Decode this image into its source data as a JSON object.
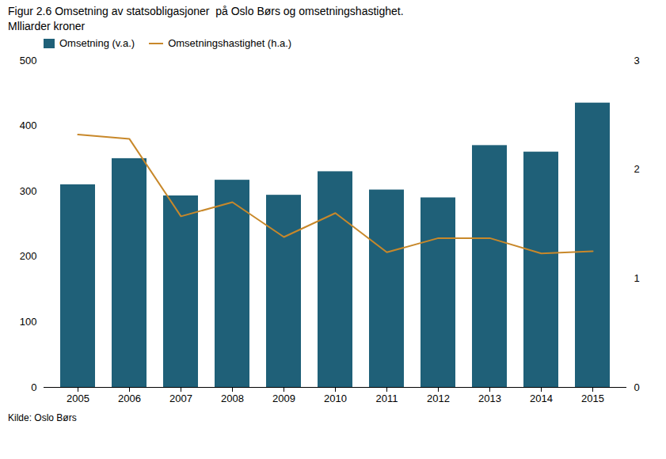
{
  "chart_data": {
    "type": "bar",
    "title": "Figur 2.6 Omsetning av statsobligasjoner  på Oslo Børs og omsetningshastighet.",
    "subtitle": "Mlliarder kroner",
    "source": "Kilde: Oslo Børs",
    "categories": [
      "2005",
      "2006",
      "2007",
      "2008",
      "2009",
      "2010",
      "2011",
      "2012",
      "2013",
      "2014",
      "2015"
    ],
    "series": [
      {
        "name": "Omsetning (v.a.)",
        "type": "bar",
        "color": "#1F6078",
        "values": [
          310,
          350,
          293,
          317,
          294,
          330,
          302,
          290,
          370,
          360,
          435
        ]
      },
      {
        "name": "Omsetningshastighet (h.a.)",
        "type": "line",
        "color": "#C8882A",
        "axis": "y2",
        "values": [
          2.32,
          2.28,
          1.57,
          1.7,
          1.38,
          1.6,
          1.24,
          1.37,
          1.37,
          1.23,
          1.25
        ]
      }
    ],
    "ylim": [
      0,
      500
    ],
    "yticks": [
      0,
      100,
      200,
      300,
      400,
      500
    ],
    "y2lim": [
      0,
      3
    ],
    "y2ticks": [
      0,
      1,
      2,
      3
    ],
    "legend": "upper left",
    "grid": false
  }
}
